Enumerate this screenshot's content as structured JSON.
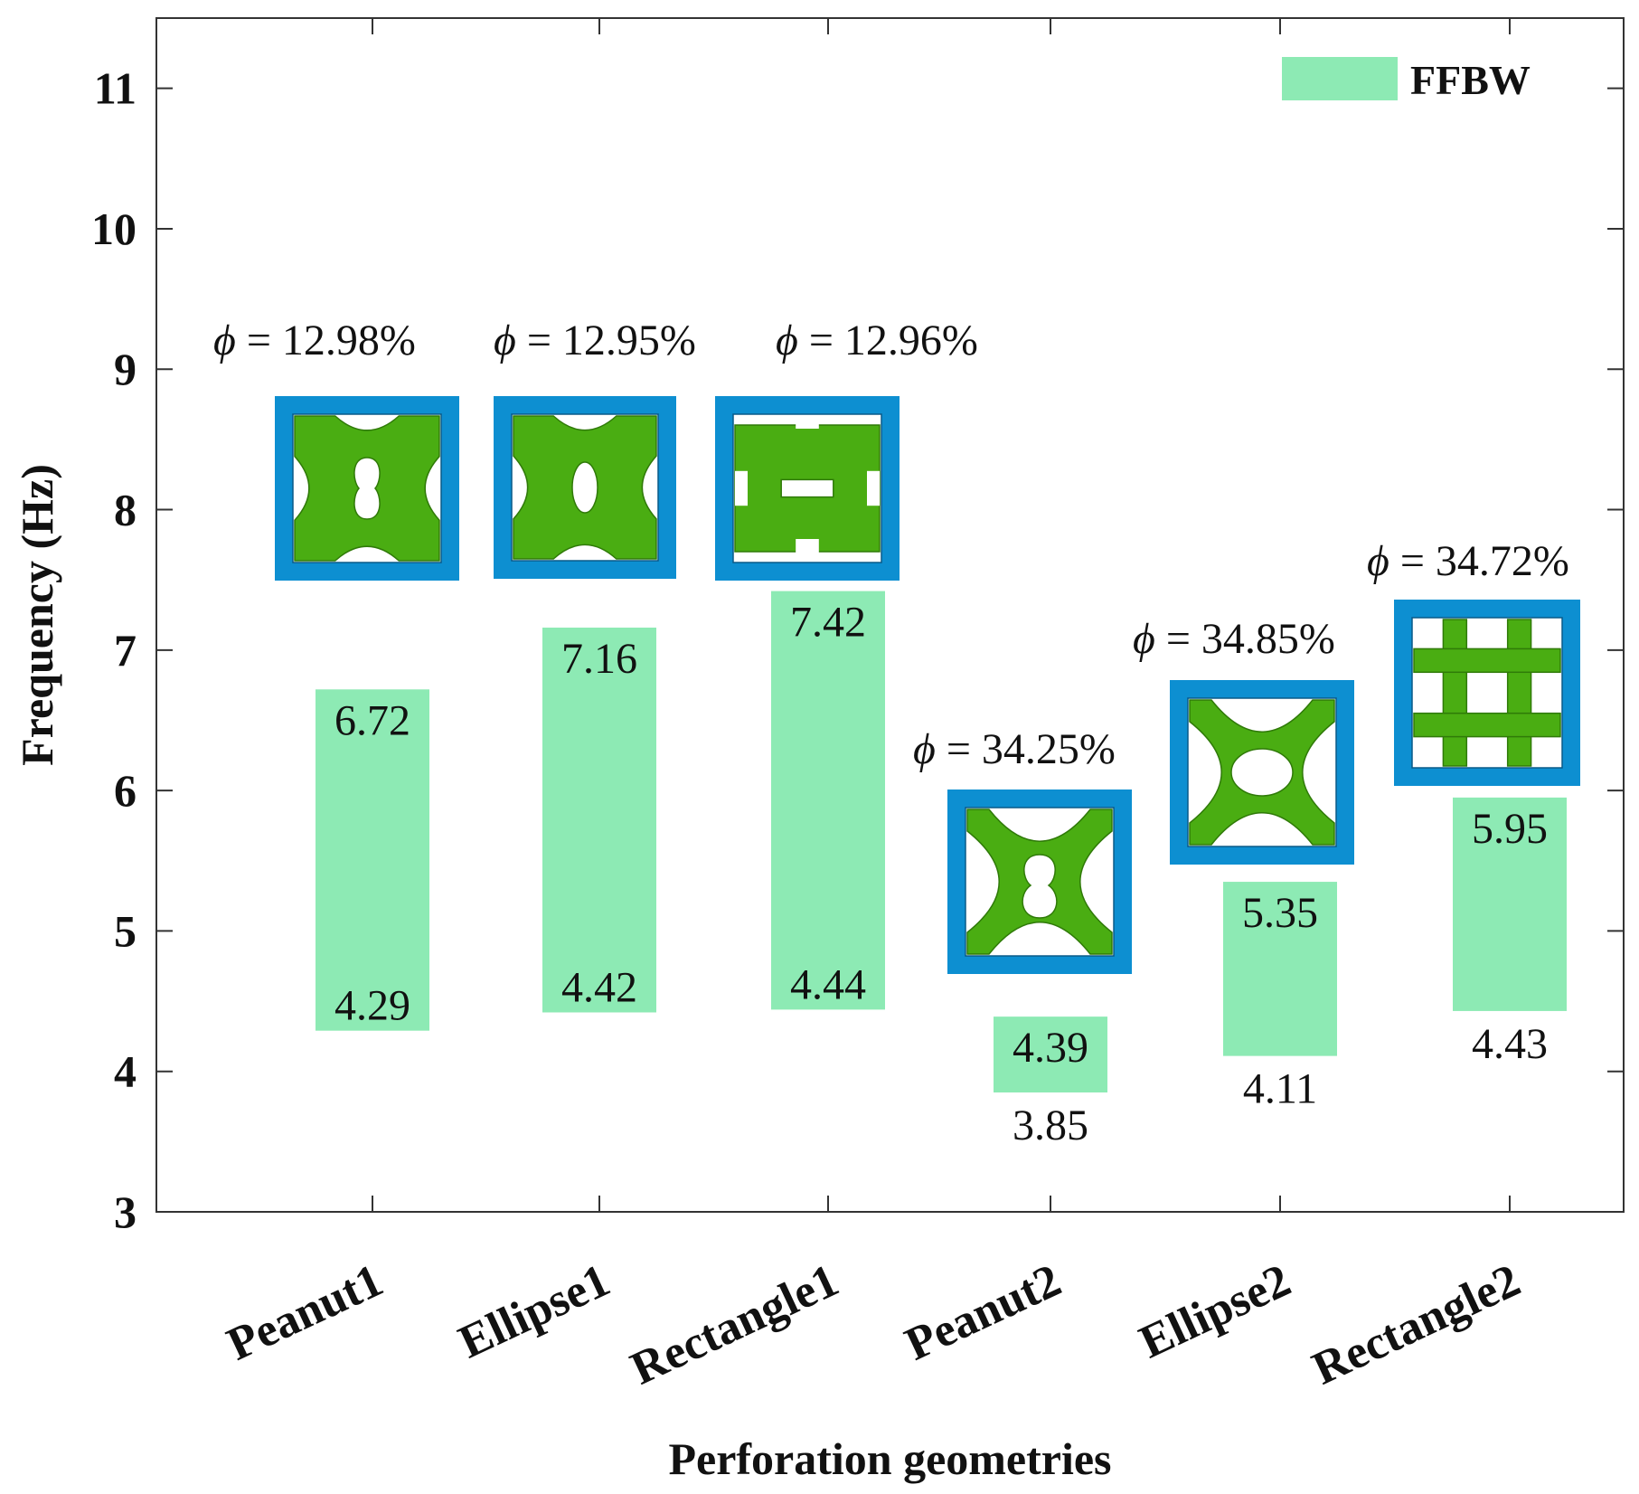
{
  "chart_data": {
    "type": "bar",
    "title": "",
    "xlabel": "Perforation geometries",
    "ylabel": "Frequency (Hz)",
    "ylim": [
      3,
      11.5
    ],
    "yticks": [
      "3",
      "4",
      "5",
      "6",
      "7",
      "8",
      "9",
      "10",
      "11"
    ],
    "legend": {
      "label": "FFBW",
      "color": "#8deab4",
      "position": "top-right"
    },
    "categories": [
      "Peanut1",
      "Ellipse1",
      "Rectangle1",
      "Peanut2",
      "Ellipse2",
      "Rectangle2"
    ],
    "series": [
      {
        "name": "FFBW",
        "lower": [
          4.29,
          4.42,
          4.44,
          3.85,
          4.11,
          4.43
        ],
        "upper": [
          6.72,
          7.16,
          7.42,
          4.39,
          5.35,
          5.95
        ],
        "lower_labels": [
          "4.29",
          "4.42",
          "4.44",
          "3.85",
          "4.11",
          "4.43"
        ],
        "upper_labels": [
          "6.72",
          "7.16",
          "7.42",
          "4.39",
          "5.35",
          "5.95"
        ]
      }
    ],
    "porosity": [
      "12.98%",
      "12.95%",
      "12.96%",
      "34.25%",
      "34.85%",
      "34.72%"
    ],
    "insets": [
      "peanut1-cell-icon",
      "ellipse1-cell-icon",
      "rectangle1-cell-icon",
      "peanut2-cell-icon",
      "ellipse2-cell-icon",
      "rectangle2-cell-icon"
    ],
    "colors": {
      "bar": "#8deab4",
      "frame": "#0d8fd1",
      "material": "#4aad12",
      "axis": "#333333"
    }
  }
}
